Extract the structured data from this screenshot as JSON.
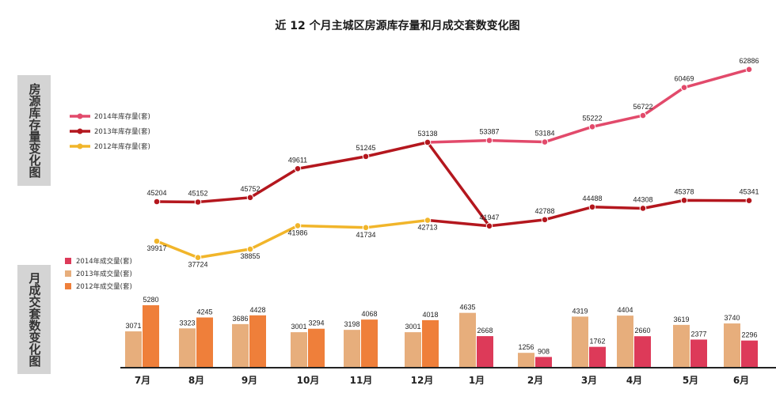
{
  "title": "近 12 个月主城区房源库存量和月成交套数变化图",
  "side_labels": {
    "top": "房源库存量变化图",
    "bottom": "月成交套数变化图"
  },
  "colors": {
    "inv2014": "#e24a6b",
    "inv2013": "#b4171e",
    "inv2012": "#f1b52a",
    "vol2014": "#dd3a59",
    "vol2013": "#e7ae7c",
    "vol2012": "#ef7f3a"
  },
  "chart_data": [
    {
      "type": "line",
      "title": "",
      "x": [
        "7月",
        "8月",
        "9月",
        "10月",
        "11月",
        "12月",
        "1月",
        "2月",
        "3月",
        "4月",
        "5月",
        "6月"
      ],
      "series": [
        {
          "name": "2014年库存量(套)",
          "values": [
            null,
            null,
            null,
            null,
            null,
            null,
            53387,
            53184,
            55222,
            56722,
            60469,
            62886
          ]
        },
        {
          "name": "2013年库存量(套)",
          "values": [
            45204,
            45152,
            45752,
            49611,
            51245,
            53138,
            41947,
            42788,
            44488,
            44308,
            45378,
            45341
          ]
        },
        {
          "name": "2012年库存量(套)",
          "values": [
            39917,
            37724,
            38855,
            41986,
            41734,
            42713,
            null,
            null,
            null,
            null,
            null,
            null
          ]
        }
      ],
      "legend": "top-left"
    },
    {
      "type": "bar",
      "title": "",
      "categories": [
        "7月",
        "8月",
        "9月",
        "10月",
        "11月",
        "12月",
        "1月",
        "2月",
        "3月",
        "4月",
        "5月",
        "6月"
      ],
      "series": [
        {
          "name": "2014年成交量(套)",
          "values": [
            null,
            null,
            null,
            null,
            null,
            null,
            2668,
            908,
            1762,
            2660,
            2377,
            2296
          ]
        },
        {
          "name": "2013年成交量(套)",
          "values": [
            3071,
            3323,
            3686,
            3001,
            3198,
            3001,
            4635,
            1256,
            4319,
            4404,
            3619,
            3740
          ]
        },
        {
          "name": "2012年成交量(套)",
          "values": [
            5280,
            4245,
            4428,
            3294,
            4068,
            4018,
            null,
            null,
            null,
            null,
            null,
            null
          ]
        }
      ],
      "legend": "top-left"
    }
  ]
}
